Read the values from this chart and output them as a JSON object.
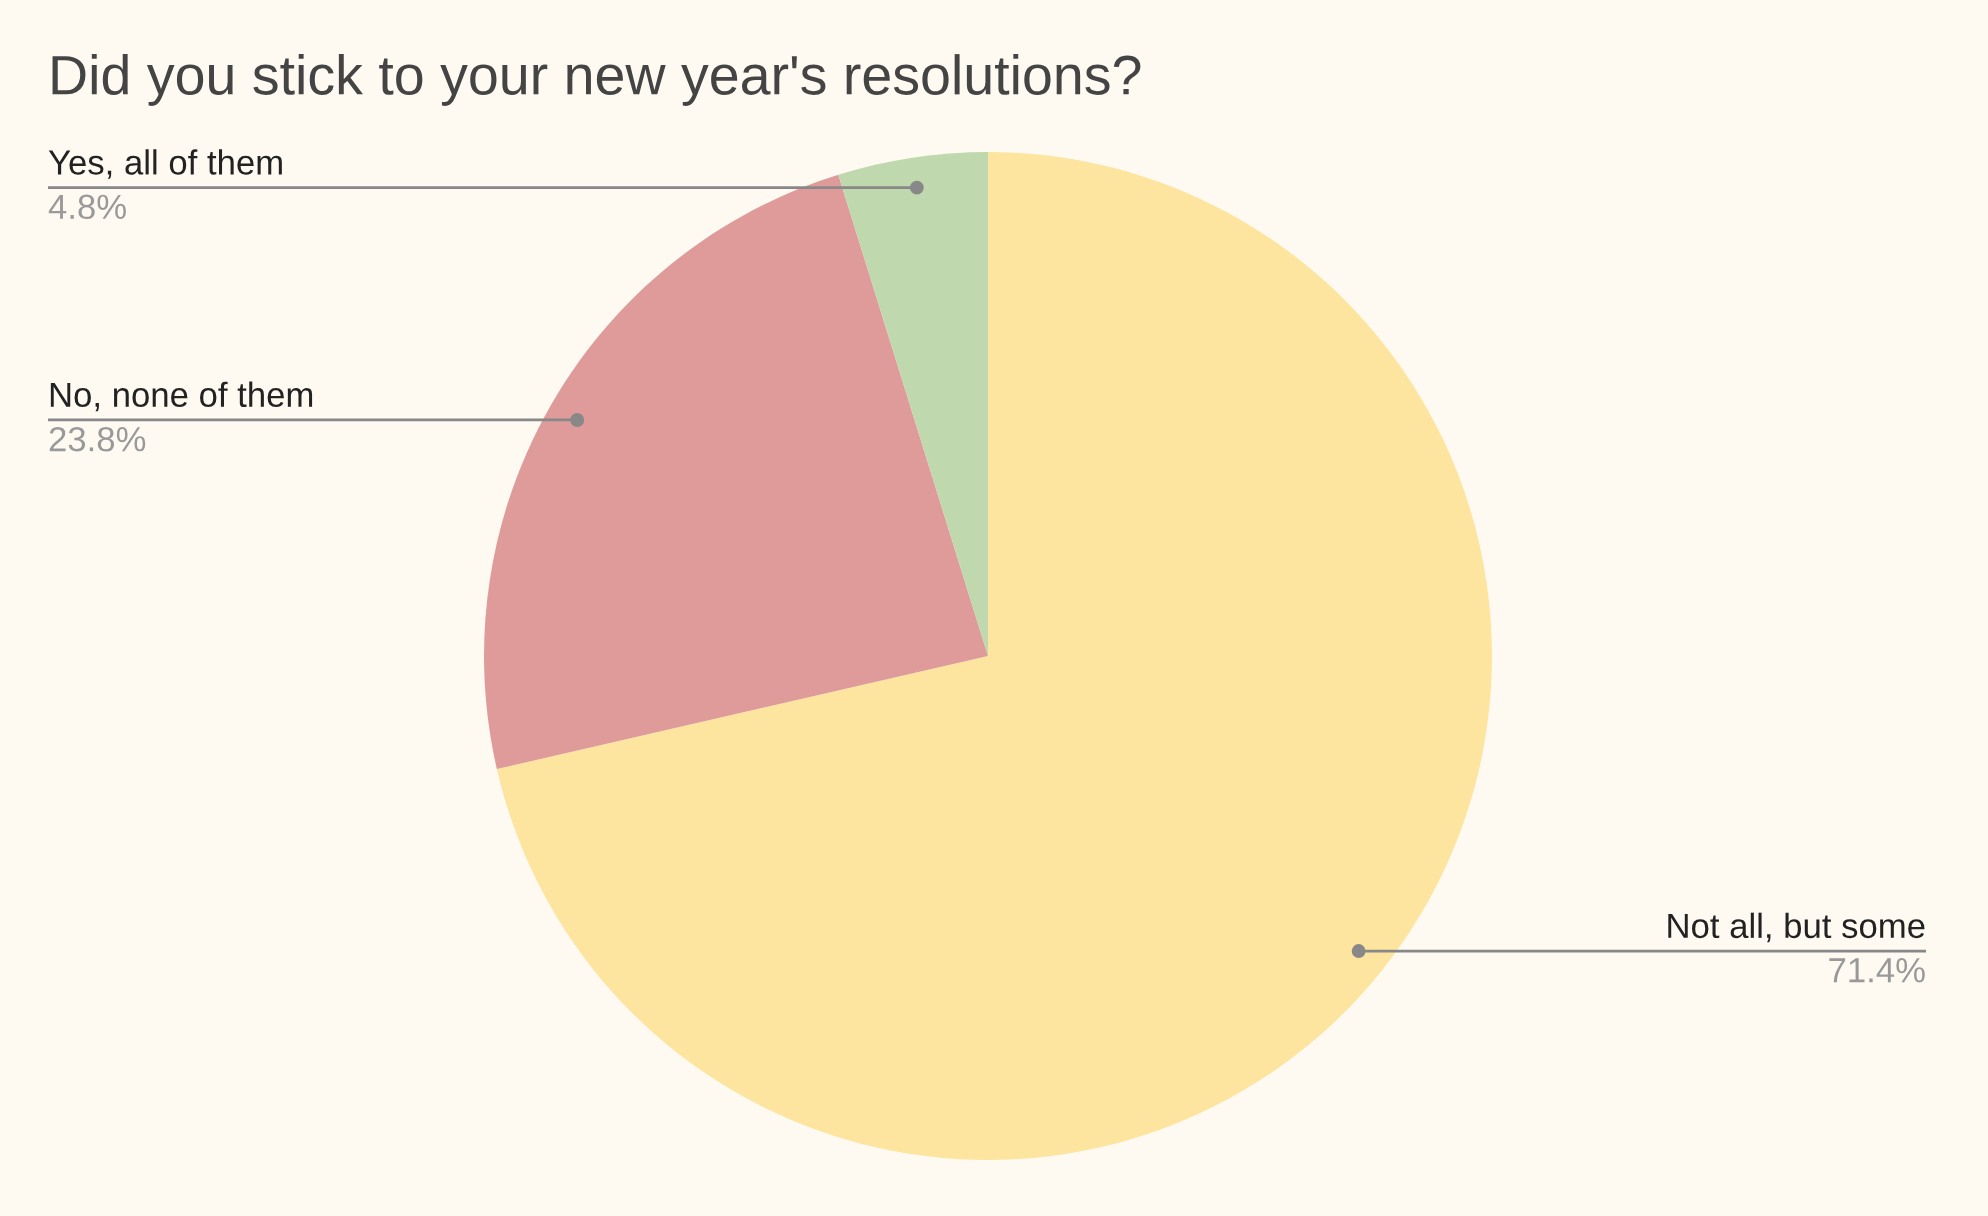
{
  "chart_data": {
    "type": "pie",
    "title": "Did you stick to your new year's resolutions?",
    "categories": [
      "Not all, but some",
      "No, none of them",
      "Yes, all of them"
    ],
    "values": [
      71.4,
      23.8,
      4.8
    ],
    "colors": [
      "#fde5a0",
      "#de9b9a",
      "#c0d8ad"
    ],
    "value_labels": [
      "71.4%",
      "23.8%",
      "4.8%"
    ],
    "legend": false
  }
}
